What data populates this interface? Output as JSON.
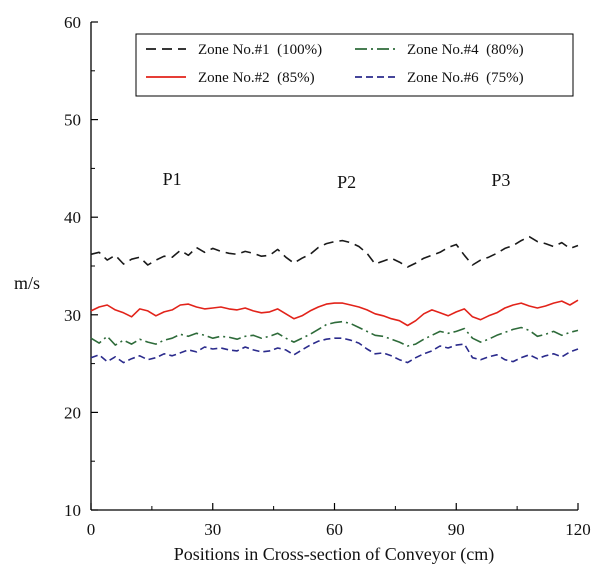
{
  "chart_data": {
    "type": "line",
    "title": "",
    "xlabel": "Positions in Cross-section of Conveyor (cm)",
    "ylabel": "m/s",
    "xlim": [
      0,
      120
    ],
    "ylim": [
      10,
      60
    ],
    "xticks": [
      "0",
      "30",
      "60",
      "90",
      "120"
    ],
    "yticks": [
      "10",
      "20",
      "30",
      "40",
      "50",
      "60"
    ],
    "grid": false,
    "legend_position": "top-right",
    "regions": [
      {
        "label": "P1",
        "x": 20
      },
      {
        "label": "P2",
        "x": 63
      },
      {
        "label": "P3",
        "x": 101
      }
    ],
    "x": [
      0,
      2,
      4,
      6,
      8,
      10,
      12,
      14,
      16,
      18,
      20,
      22,
      24,
      26,
      28,
      30,
      32,
      34,
      36,
      38,
      40,
      42,
      44,
      46,
      48,
      50,
      52,
      54,
      56,
      58,
      60,
      62,
      64,
      66,
      68,
      70,
      72,
      74,
      76,
      78,
      80,
      82,
      84,
      86,
      88,
      90,
      92,
      94,
      96,
      98,
      100,
      102,
      104,
      106,
      108,
      110,
      112,
      114,
      116,
      118,
      120
    ],
    "series": [
      {
        "name": "Zone No.#1  (100%)",
        "color": "#1a1a1a",
        "dash": "10,6",
        "values": [
          36.2,
          36.4,
          35.6,
          36.1,
          35.2,
          35.7,
          35.9,
          35.1,
          35.6,
          36.0,
          35.9,
          36.6,
          36.1,
          36.9,
          36.4,
          36.8,
          36.5,
          36.3,
          36.2,
          36.5,
          36.3,
          36.0,
          36.1,
          36.7,
          35.9,
          35.3,
          35.8,
          36.2,
          36.9,
          37.3,
          37.5,
          37.6,
          37.4,
          37.0,
          36.3,
          35.2,
          35.5,
          35.8,
          35.4,
          34.9,
          35.3,
          35.8,
          36.1,
          36.4,
          36.9,
          37.2,
          36.1,
          35.1,
          35.6,
          35.9,
          36.3,
          36.8,
          37.1,
          37.6,
          38.0,
          37.5,
          37.3,
          37.0,
          37.4,
          36.8,
          37.1
        ]
      },
      {
        "name": "Zone No.#2  (85%)",
        "color": "#e2231a",
        "dash": "",
        "values": [
          30.4,
          30.8,
          31.0,
          30.5,
          30.2,
          29.8,
          30.6,
          30.4,
          29.9,
          30.3,
          30.5,
          31.0,
          31.1,
          30.8,
          30.6,
          30.7,
          30.8,
          30.6,
          30.5,
          30.7,
          30.4,
          30.2,
          30.3,
          30.6,
          30.1,
          29.6,
          29.9,
          30.4,
          30.8,
          31.1,
          31.2,
          31.2,
          31.0,
          30.8,
          30.5,
          30.1,
          29.9,
          29.6,
          29.4,
          28.9,
          29.4,
          30.1,
          30.5,
          30.2,
          29.9,
          30.3,
          30.6,
          29.8,
          29.5,
          29.9,
          30.2,
          30.7,
          31.0,
          31.2,
          30.9,
          30.7,
          30.9,
          31.2,
          31.4,
          31.0,
          31.5
        ]
      },
      {
        "name": "Zone No.#4  (80%)",
        "color": "#2e6b3a",
        "dash": "12,4,2,4",
        "values": [
          27.6,
          27.1,
          27.8,
          26.9,
          27.4,
          27.0,
          27.5,
          27.2,
          27.0,
          27.4,
          27.6,
          28.0,
          27.8,
          28.1,
          27.9,
          27.6,
          27.8,
          27.7,
          27.5,
          27.8,
          27.9,
          27.6,
          27.8,
          28.1,
          27.6,
          27.2,
          27.6,
          28.0,
          28.5,
          29.0,
          29.2,
          29.3,
          29.1,
          28.7,
          28.3,
          27.9,
          27.8,
          27.5,
          27.2,
          26.8,
          27.0,
          27.5,
          27.9,
          28.3,
          28.1,
          28.3,
          28.6,
          27.6,
          27.2,
          27.5,
          27.9,
          28.2,
          28.5,
          28.7,
          28.4,
          27.8,
          28.0,
          28.3,
          27.9,
          28.2,
          28.4
        ]
      },
      {
        "name": "Zone No.#6  (75%)",
        "color": "#2b2b8c",
        "dash": "7,4",
        "values": [
          25.6,
          25.9,
          25.2,
          25.7,
          25.1,
          25.5,
          25.8,
          25.4,
          25.6,
          26.0,
          25.8,
          26.1,
          26.4,
          26.2,
          26.7,
          26.5,
          26.6,
          26.4,
          26.3,
          26.7,
          26.4,
          26.2,
          26.3,
          26.6,
          26.4,
          25.9,
          26.4,
          26.9,
          27.3,
          27.5,
          27.6,
          27.6,
          27.4,
          27.1,
          26.5,
          26.0,
          26.1,
          25.8,
          25.4,
          25.1,
          25.6,
          26.0,
          26.3,
          26.8,
          26.6,
          26.9,
          27.0,
          25.6,
          25.4,
          25.7,
          25.9,
          25.4,
          25.2,
          25.6,
          25.9,
          25.5,
          25.8,
          26.0,
          25.7,
          26.2,
          26.5
        ]
      }
    ]
  }
}
